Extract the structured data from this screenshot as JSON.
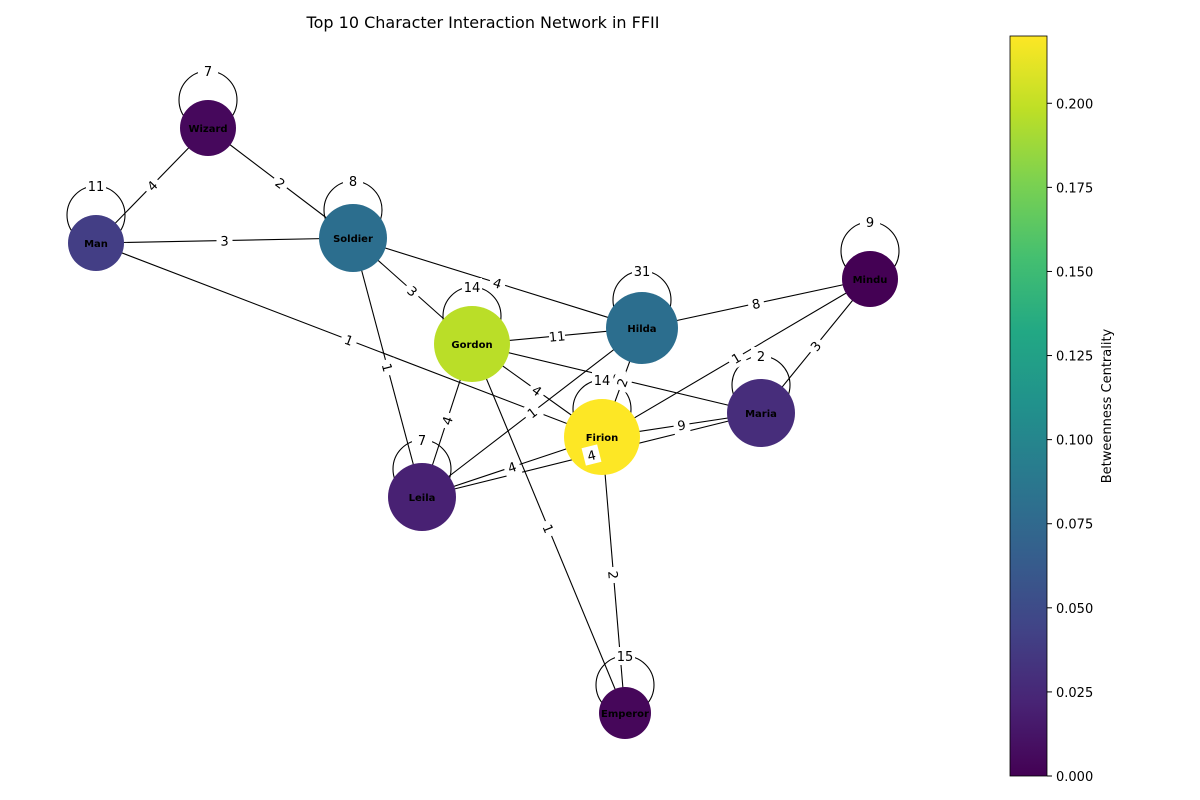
{
  "title": "Top 10 Character Interaction Network in FFII",
  "colorbar": {
    "label": "Betweenness Centrality",
    "min": 0.0,
    "max": 0.22,
    "ticks": [
      "0.000",
      "0.025",
      "0.050",
      "0.075",
      "0.100",
      "0.125",
      "0.150",
      "0.175",
      "0.200"
    ],
    "tick_values": [
      0.0,
      0.025,
      0.05,
      0.075,
      0.1,
      0.125,
      0.15,
      0.175,
      0.2
    ],
    "colormap": "viridis"
  },
  "nodes": [
    {
      "id": "Wizard",
      "label": "Wizard",
      "color": "#46085c",
      "centrality": 0.012
    },
    {
      "id": "Man",
      "label": "Man",
      "color": "#433e85",
      "centrality": 0.035
    },
    {
      "id": "Soldier",
      "label": "Soldier",
      "color": "#2c6e8e",
      "centrality": 0.075
    },
    {
      "id": "Gordon",
      "label": "Gordon",
      "color": "#bade28",
      "centrality": 0.205
    },
    {
      "id": "Hilda",
      "label": "Hilda",
      "color": "#2c6e8e",
      "centrality": 0.075
    },
    {
      "id": "Mindu",
      "label": "Mindu",
      "color": "#440154",
      "centrality": 0.0
    },
    {
      "id": "Maria",
      "label": "Maria",
      "color": "#472d7b",
      "centrality": 0.03
    },
    {
      "id": "Firion",
      "label": "Firion",
      "color": "#fde725",
      "centrality": 0.22
    },
    {
      "id": "Leila",
      "label": "Leila",
      "color": "#482173",
      "centrality": 0.022
    },
    {
      "id": "Emperor",
      "label": "Emperor",
      "color": "#46075a",
      "centrality": 0.005
    }
  ],
  "self_loops": [
    {
      "node": "Wizard",
      "weight": "7"
    },
    {
      "node": "Man",
      "weight": "11"
    },
    {
      "node": "Soldier",
      "weight": "8"
    },
    {
      "node": "Gordon",
      "weight": "14"
    },
    {
      "node": "Hilda",
      "weight": "31"
    },
    {
      "node": "Mindu",
      "weight": "9"
    },
    {
      "node": "Maria",
      "weight": "2"
    },
    {
      "node": "Firion",
      "weight": "14"
    },
    {
      "node": "Leila",
      "weight": "7"
    },
    {
      "node": "Emperor",
      "weight": "15"
    }
  ],
  "edges": [
    {
      "source": "Wizard",
      "target": "Man",
      "weight": "4"
    },
    {
      "source": "Wizard",
      "target": "Soldier",
      "weight": "2"
    },
    {
      "source": "Man",
      "target": "Soldier",
      "weight": "3"
    },
    {
      "source": "Man",
      "target": "Firion",
      "weight": "1"
    },
    {
      "source": "Soldier",
      "target": "Gordon",
      "weight": "3"
    },
    {
      "source": "Soldier",
      "target": "Hilda",
      "weight": "4"
    },
    {
      "source": "Soldier",
      "target": "Leila",
      "weight": "1"
    },
    {
      "source": "Gordon",
      "target": "Hilda",
      "weight": "11"
    },
    {
      "source": "Gordon",
      "target": "Maria",
      "weight": "9"
    },
    {
      "source": "Gordon",
      "target": "Firion",
      "weight": "4"
    },
    {
      "source": "Gordon",
      "target": "Leila",
      "weight": "4"
    },
    {
      "source": "Gordon",
      "target": "Emperor",
      "weight": "1"
    },
    {
      "source": "Hilda",
      "target": "Mindu",
      "weight": "8"
    },
    {
      "source": "Hilda",
      "target": "Firion",
      "weight": "2"
    },
    {
      "source": "Hilda",
      "target": "Leila",
      "weight": "1"
    },
    {
      "source": "Mindu",
      "target": "Firion",
      "weight": "1"
    },
    {
      "source": "Mindu",
      "target": "Maria",
      "weight": "3"
    },
    {
      "source": "Maria",
      "target": "Firion",
      "weight": "9"
    },
    {
      "source": "Maria",
      "target": "Leila",
      "weight": "4"
    },
    {
      "source": "Firion",
      "target": "Leila",
      "weight": "4"
    },
    {
      "source": "Firion",
      "target": "Emperor",
      "weight": "2"
    }
  ]
}
